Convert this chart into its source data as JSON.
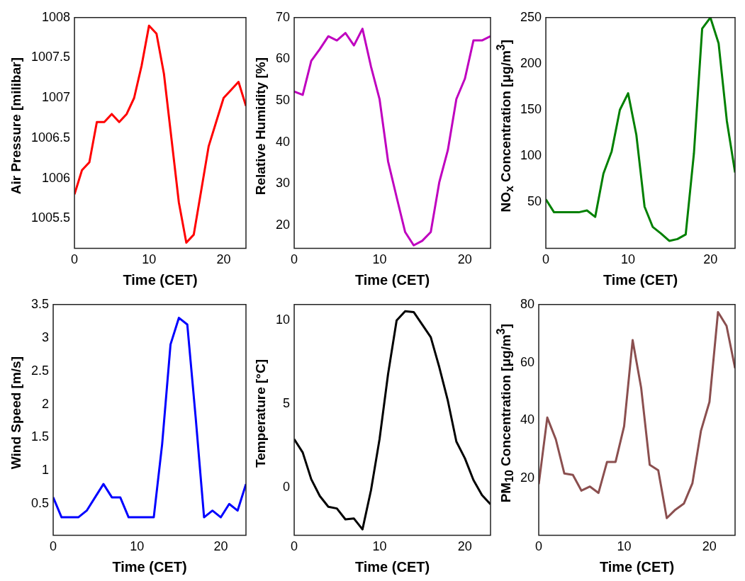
{
  "chart_data": [
    {
      "type": "line",
      "xlabel": "Time (CET)",
      "ylabel": "Air Pressure [milibar]",
      "color": "#ff0000",
      "xlim": [
        0,
        23
      ],
      "xticks": [
        0,
        10,
        20
      ],
      "ylim": [
        1005.13,
        1008
      ],
      "yticks": [
        1005.5,
        1006,
        1006.5,
        1007,
        1007.5,
        1008
      ],
      "x": [
        0,
        1,
        2,
        3,
        4,
        5,
        6,
        7,
        8,
        9,
        10,
        11,
        12,
        13,
        14,
        15,
        16,
        17,
        18,
        19,
        20,
        21,
        22,
        23
      ],
      "values": [
        1005.8,
        1006.1,
        1006.2,
        1006.7,
        1006.7,
        1006.8,
        1006.7,
        1006.8,
        1007.0,
        1007.4,
        1007.9,
        1007.8,
        1007.3,
        1006.5,
        1005.7,
        1005.2,
        1005.3,
        1005.85,
        1006.4,
        1006.7,
        1007.0,
        1007.1,
        1007.2,
        1006.9
      ]
    },
    {
      "type": "line",
      "xlabel": "Time (CET)",
      "ylabel": "Relative Humidity [%]",
      "color": "#bf00bf",
      "xlim": [
        0,
        23
      ],
      "xticks": [
        0,
        10,
        20
      ],
      "ylim": [
        14.5,
        70
      ],
      "yticks": [
        20,
        30,
        40,
        50,
        60,
        70
      ],
      "x": [
        0,
        1,
        2,
        3,
        4,
        5,
        6,
        7,
        8,
        9,
        10,
        11,
        12,
        13,
        14,
        15,
        16,
        17,
        18,
        19,
        20,
        21,
        22,
        23
      ],
      "values": [
        52.2,
        51.4,
        59.6,
        62.4,
        65.5,
        64.5,
        66.3,
        63.3,
        67.3,
        58.2,
        50.4,
        35.4,
        26.8,
        18.4,
        15.2,
        16.3,
        18.4,
        30.4,
        38.1,
        50.4,
        55.3,
        64.5,
        64.5,
        65.5
      ]
    },
    {
      "type": "line",
      "xlabel": "Time (CET)",
      "ylabel": "NO$_{x}$ Concentration [μg/m$^{3}$]",
      "color": "#008000",
      "xlim": [
        0,
        23
      ],
      "xticks": [
        0,
        10,
        20
      ],
      "ylim": [
        0,
        250
      ],
      "yticks": [
        50,
        100,
        150,
        200,
        250
      ],
      "x": [
        0,
        1,
        2,
        3,
        4,
        5,
        6,
        7,
        8,
        9,
        10,
        11,
        12,
        13,
        14,
        15,
        16,
        17,
        18,
        19,
        20,
        21,
        22,
        23
      ],
      "values": [
        53,
        39,
        39,
        39,
        39,
        41,
        34,
        81,
        105,
        150,
        168,
        123,
        45,
        23,
        16,
        8,
        10,
        15,
        103,
        238,
        250,
        222,
        138,
        82
      ]
    },
    {
      "type": "line",
      "xlabel": "Time (CET)",
      "ylabel": "Wind Speed [m/s]",
      "color": "#0000ff",
      "xlim": [
        0,
        23
      ],
      "xticks": [
        0,
        10,
        20
      ],
      "ylim": [
        0.03,
        3.5
      ],
      "yticks": [
        0.5,
        1,
        1.5,
        2,
        2.5,
        3,
        3.5
      ],
      "x": [
        0,
        1,
        2,
        3,
        4,
        5,
        6,
        7,
        8,
        9,
        10,
        11,
        12,
        13,
        14,
        15,
        16,
        17,
        18,
        19,
        20,
        21,
        22,
        23
      ],
      "values": [
        0.6,
        0.3,
        0.3,
        0.3,
        0.4,
        0.6,
        0.8,
        0.6,
        0.6,
        0.3,
        0.3,
        0.3,
        0.3,
        1.4,
        2.9,
        3.3,
        3.2,
        1.8,
        0.3,
        0.4,
        0.3,
        0.5,
        0.4,
        0.8
      ]
    },
    {
      "type": "line",
      "xlabel": "Time (CET)",
      "ylabel": "Temperature [°C]",
      "color": "#000000",
      "xlim": [
        0,
        23
      ],
      "xticks": [
        0,
        10,
        20
      ],
      "ylim": [
        -2.85,
        10.95
      ],
      "yticks": [
        0,
        5,
        10
      ],
      "x": [
        0,
        1,
        2,
        3,
        4,
        5,
        6,
        7,
        8,
        9,
        10,
        11,
        12,
        13,
        14,
        15,
        16,
        17,
        18,
        19,
        20,
        21,
        22,
        23
      ],
      "values": [
        2.9,
        2.1,
        0.5,
        -0.5,
        -1.15,
        -1.25,
        -1.9,
        -1.85,
        -2.5,
        -0.15,
        2.9,
        6.8,
        10.0,
        10.55,
        10.5,
        9.75,
        9.0,
        7.2,
        5.2,
        2.75,
        1.75,
        0.45,
        -0.45,
        -1.0
      ]
    },
    {
      "type": "line",
      "xlabel": "Time (CET)",
      "ylabel": "PM$_{10}$ Concentration [μg/m$^{3}$]",
      "color": "#8b4f4f",
      "xlim": [
        0,
        23
      ],
      "xticks": [
        0,
        10,
        20
      ],
      "ylim": [
        0.4,
        80
      ],
      "yticks": [
        20,
        40,
        60,
        80
      ],
      "x": [
        0,
        1,
        2,
        3,
        4,
        5,
        6,
        7,
        8,
        9,
        10,
        11,
        12,
        13,
        14,
        15,
        16,
        17,
        18,
        19,
        20,
        21,
        22,
        23
      ],
      "values": [
        18,
        41,
        33.5,
        21.7,
        21.2,
        15.8,
        17.2,
        15,
        25.7,
        25.7,
        38,
        67.7,
        51.2,
        24.7,
        22.8,
        6.3,
        9.2,
        11.3,
        18.3,
        36.4,
        46.4,
        77.4,
        72.6,
        58
      ]
    }
  ]
}
